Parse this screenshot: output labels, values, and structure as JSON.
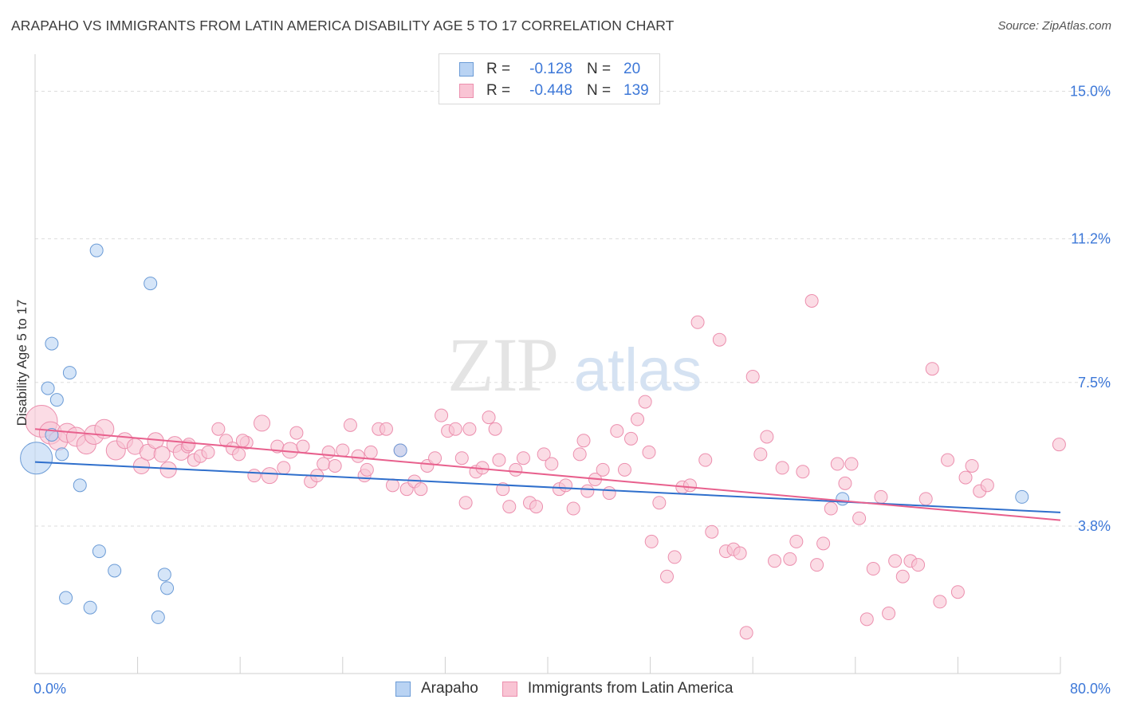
{
  "title": "ARAPAHO VS IMMIGRANTS FROM LATIN AMERICA DISABILITY AGE 5 TO 17 CORRELATION CHART",
  "source": "Source: ZipAtlas.com",
  "watermark": {
    "zip": "ZIP",
    "atlas": "atlas"
  },
  "legend_top": [
    {
      "r_label": "R =",
      "r_value": "-0.128",
      "n_label": "N =",
      "n_value": "20"
    },
    {
      "r_label": "R =",
      "r_value": "-0.448",
      "n_label": "N =",
      "n_value": "139"
    }
  ],
  "colors": {
    "arapaho_fill": "#b9d3f3",
    "arapaho_stroke": "#6b9bd6",
    "arapaho_line": "#2f6fcc",
    "latam_fill": "#f9c4d4",
    "latam_stroke": "#ec8fae",
    "latam_line": "#e8608d",
    "axis_label": "#3d78d8",
    "grid": "#dddddd"
  },
  "chart_data": {
    "type": "scatter",
    "title": "ARAPAHO VS IMMIGRANTS FROM LATIN AMERICA DISABILITY AGE 5 TO 17 CORRELATION CHART",
    "ylabel": "Disability Age 5 to 17",
    "xlim": [
      0,
      80
    ],
    "ylim": [
      0,
      15.75
    ],
    "y_ticks": [
      3.8,
      7.5,
      11.2,
      15.0
    ],
    "y_tick_labels": [
      "3.8%",
      "7.5%",
      "11.2%",
      "15.0%"
    ],
    "x_tick_labels": [
      "0.0%",
      "80.0%"
    ],
    "series": [
      {
        "name": "Arapaho",
        "r": -0.128,
        "n": 20,
        "trend": {
          "x": [
            0,
            80
          ],
          "y": [
            5.45,
            4.15
          ]
        },
        "points": [
          [
            0.1,
            5.55,
            20
          ],
          [
            1.0,
            7.35,
            8
          ],
          [
            1.3,
            6.15,
            8
          ],
          [
            1.3,
            8.5,
            8
          ],
          [
            1.7,
            7.05,
            8
          ],
          [
            2.1,
            5.65,
            8
          ],
          [
            2.4,
            1.95,
            8
          ],
          [
            2.7,
            7.75,
            8
          ],
          [
            3.5,
            4.85,
            8
          ],
          [
            4.3,
            1.7,
            8
          ],
          [
            4.8,
            10.9,
            8
          ],
          [
            5.0,
            3.15,
            8
          ],
          [
            6.2,
            2.65,
            8
          ],
          [
            9.0,
            10.05,
            8
          ],
          [
            9.6,
            1.45,
            8
          ],
          [
            10.1,
            2.55,
            8
          ],
          [
            10.3,
            2.2,
            8
          ],
          [
            28.5,
            5.75,
            8
          ],
          [
            63.0,
            4.5,
            8
          ],
          [
            77.0,
            4.55,
            8
          ]
        ]
      },
      {
        "name": "Immigrants from Latin America",
        "r": -0.448,
        "n": 139,
        "trend": {
          "x": [
            0,
            80
          ],
          "y": [
            6.3,
            3.95
          ]
        },
        "points": [
          [
            0.5,
            6.5,
            20
          ],
          [
            1.2,
            6.2,
            14
          ],
          [
            1.8,
            6.0,
            12
          ],
          [
            2.5,
            6.2,
            12
          ],
          [
            3.2,
            6.1,
            12
          ],
          [
            4.0,
            5.9,
            12
          ],
          [
            4.6,
            6.15,
            12
          ],
          [
            5.4,
            6.3,
            12
          ],
          [
            6.3,
            5.75,
            12
          ],
          [
            7.0,
            6.0,
            10
          ],
          [
            7.8,
            5.85,
            10
          ],
          [
            8.3,
            5.35,
            10
          ],
          [
            8.8,
            5.7,
            10
          ],
          [
            9.4,
            6.0,
            10
          ],
          [
            9.9,
            5.65,
            10
          ],
          [
            10.4,
            5.25,
            10
          ],
          [
            10.9,
            5.9,
            10
          ],
          [
            11.4,
            5.7,
            10
          ],
          [
            11.9,
            5.85,
            8
          ],
          [
            12.4,
            5.5,
            8
          ],
          [
            12.9,
            5.6,
            8
          ],
          [
            13.5,
            5.7,
            8
          ],
          [
            14.3,
            6.3,
            8
          ],
          [
            14.9,
            6.0,
            8
          ],
          [
            15.4,
            5.8,
            8
          ],
          [
            15.9,
            5.65,
            8
          ],
          [
            16.5,
            5.95,
            8
          ],
          [
            17.1,
            5.1,
            8
          ],
          [
            17.7,
            6.45,
            10
          ],
          [
            18.3,
            5.1,
            10
          ],
          [
            18.9,
            5.85,
            8
          ],
          [
            19.4,
            5.3,
            8
          ],
          [
            19.9,
            5.75,
            10
          ],
          [
            20.4,
            6.2,
            8
          ],
          [
            20.9,
            5.85,
            8
          ],
          [
            21.5,
            4.95,
            8
          ],
          [
            22.0,
            5.1,
            8
          ],
          [
            22.5,
            5.4,
            8
          ],
          [
            22.9,
            5.7,
            8
          ],
          [
            23.4,
            5.35,
            8
          ],
          [
            24.0,
            5.75,
            8
          ],
          [
            24.6,
            6.4,
            8
          ],
          [
            25.2,
            5.6,
            8
          ],
          [
            25.7,
            5.1,
            8
          ],
          [
            26.2,
            5.7,
            8
          ],
          [
            26.8,
            6.3,
            8
          ],
          [
            27.4,
            6.3,
            8
          ],
          [
            27.9,
            4.85,
            8
          ],
          [
            28.5,
            5.75,
            8
          ],
          [
            29.0,
            4.75,
            8
          ],
          [
            29.6,
            4.95,
            8
          ],
          [
            30.1,
            4.75,
            8
          ],
          [
            30.6,
            5.35,
            8
          ],
          [
            31.2,
            5.55,
            8
          ],
          [
            31.7,
            6.65,
            8
          ],
          [
            32.2,
            6.25,
            8
          ],
          [
            32.8,
            6.3,
            8
          ],
          [
            33.3,
            5.55,
            8
          ],
          [
            33.9,
            6.3,
            8
          ],
          [
            34.4,
            5.2,
            8
          ],
          [
            34.9,
            5.3,
            8
          ],
          [
            35.4,
            6.6,
            8
          ],
          [
            35.9,
            6.3,
            8
          ],
          [
            36.5,
            4.75,
            8
          ],
          [
            37.0,
            4.3,
            8
          ],
          [
            37.5,
            5.25,
            8
          ],
          [
            38.1,
            5.55,
            8
          ],
          [
            38.6,
            4.4,
            8
          ],
          [
            39.1,
            4.3,
            8
          ],
          [
            39.7,
            5.65,
            8
          ],
          [
            40.3,
            5.4,
            8
          ],
          [
            40.9,
            4.75,
            8
          ],
          [
            41.4,
            4.85,
            8
          ],
          [
            42.0,
            4.25,
            8
          ],
          [
            42.5,
            5.65,
            8
          ],
          [
            43.1,
            4.7,
            8
          ],
          [
            43.7,
            5.0,
            8
          ],
          [
            44.3,
            5.25,
            8
          ],
          [
            44.8,
            4.65,
            8
          ],
          [
            45.4,
            6.25,
            8
          ],
          [
            46.0,
            5.25,
            8
          ],
          [
            46.5,
            6.05,
            8
          ],
          [
            47.0,
            6.55,
            8
          ],
          [
            47.6,
            7.0,
            8
          ],
          [
            48.1,
            3.4,
            8
          ],
          [
            48.7,
            4.4,
            8
          ],
          [
            49.3,
            2.5,
            8
          ],
          [
            49.9,
            3.0,
            8
          ],
          [
            50.5,
            4.8,
            8
          ],
          [
            51.1,
            4.85,
            8
          ],
          [
            51.7,
            9.05,
            8
          ],
          [
            52.3,
            5.5,
            8
          ],
          [
            52.8,
            3.65,
            8
          ],
          [
            53.4,
            8.6,
            8
          ],
          [
            53.9,
            3.15,
            8
          ],
          [
            54.5,
            3.2,
            8
          ],
          [
            55.0,
            3.1,
            8
          ],
          [
            55.5,
            1.05,
            8
          ],
          [
            56.0,
            7.65,
            8
          ],
          [
            56.6,
            5.65,
            8
          ],
          [
            57.1,
            6.1,
            8
          ],
          [
            57.7,
            2.9,
            8
          ],
          [
            58.3,
            5.3,
            8
          ],
          [
            58.9,
            2.95,
            8
          ],
          [
            59.4,
            3.4,
            8
          ],
          [
            59.9,
            5.2,
            8
          ],
          [
            61.0,
            2.8,
            8
          ],
          [
            61.5,
            3.35,
            8
          ],
          [
            62.1,
            4.25,
            8
          ],
          [
            62.6,
            5.4,
            8
          ],
          [
            63.2,
            4.9,
            8
          ],
          [
            63.7,
            5.4,
            8
          ],
          [
            64.3,
            4.0,
            8
          ],
          [
            64.9,
            1.4,
            8
          ],
          [
            65.4,
            2.7,
            8
          ],
          [
            66.0,
            4.55,
            8
          ],
          [
            66.6,
            1.55,
            8
          ],
          [
            67.1,
            2.9,
            8
          ],
          [
            67.7,
            2.5,
            8
          ],
          [
            68.3,
            2.9,
            8
          ],
          [
            68.9,
            2.8,
            8
          ],
          [
            69.5,
            4.5,
            8
          ],
          [
            70.0,
            7.85,
            8
          ],
          [
            70.6,
            1.85,
            8
          ],
          [
            71.2,
            5.5,
            8
          ],
          [
            72.0,
            2.1,
            8
          ],
          [
            72.6,
            5.05,
            8
          ],
          [
            73.1,
            5.35,
            8
          ],
          [
            73.7,
            4.7,
            8
          ],
          [
            74.3,
            4.85,
            8
          ],
          [
            60.6,
            9.6,
            8
          ],
          [
            47.9,
            5.7,
            8
          ],
          [
            16.2,
            6.0,
            8
          ],
          [
            12.0,
            5.9,
            8
          ],
          [
            79.9,
            5.9,
            8
          ],
          [
            25.9,
            5.25,
            8
          ],
          [
            36.2,
            5.5,
            8
          ],
          [
            42.8,
            6.0,
            8
          ],
          [
            33.6,
            4.4,
            8
          ]
        ]
      }
    ]
  },
  "bottom_legend": [
    "Arapaho",
    "Immigrants from Latin America"
  ]
}
